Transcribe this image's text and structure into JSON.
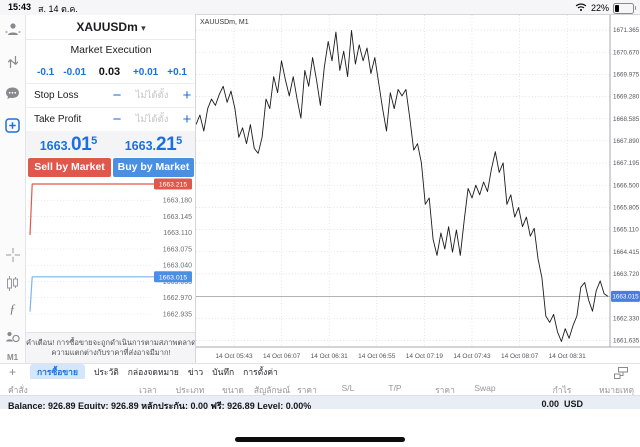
{
  "status_bar": {
    "time": "15:43",
    "date": "ส. 14 ต.ค.",
    "battery": "22%"
  },
  "sidebar": {
    "timeframe": "M1"
  },
  "icons": {
    "quotes": "person",
    "trade": "arrows-up-down",
    "chat": "speech-bubble",
    "new_order": "plus-square",
    "crosshair": "crosshair",
    "chart_type": "candles",
    "indicators": "ƒ",
    "objects": "shapes",
    "add": "+",
    "window_layout": "panes",
    "wifi": "wifi",
    "battery": "battery",
    "symbol_arrow": "▾"
  },
  "order_panel": {
    "symbol": "XAUUSDm",
    "mode": "Market Execution",
    "volume": {
      "dec_big": "-0.1",
      "dec_small": "-0.01",
      "value": "0.03",
      "inc_small": "+0.01",
      "inc_big": "+0.1"
    },
    "stop_loss_label": "Stop Loss",
    "take_profit_label": "Take Profit",
    "not_set": "ไม่ได้ตั้ง",
    "minus": "−",
    "plus": "+",
    "sell_price": {
      "prefix": "1663.",
      "big": "01",
      "sup": "5"
    },
    "buy_price": {
      "prefix": "1663.",
      "big": "21",
      "sup": "5"
    },
    "sell_button": "Sell by Market",
    "buy_button": "Buy by Market",
    "warning_line1": "คำเตือน! การซื้อขายจะถูกดำเนินการตามสภาพตลาด",
    "warning_line2": "ความแตกต่างกับราคาที่ส่งอาจมีมาก!"
  },
  "mini_chart": {
    "labels": [
      "1663.180",
      "1663.145",
      "1663.110",
      "1663.075",
      "1663.040",
      "1663.005",
      "1662.970",
      "1662.935"
    ],
    "ask_badge": "1663.215",
    "bid_badge": "1663.015",
    "ask_color": "#e0574b",
    "bid_color": "#7fb3ea",
    "ask_points": [
      [
        0.0,
        1663.105
      ],
      [
        0.018,
        1663.215
      ],
      [
        1.0,
        1663.215
      ]
    ],
    "bid_points": [
      [
        0.0,
        1662.94
      ],
      [
        0.018,
        1663.015
      ],
      [
        1.0,
        1663.015
      ]
    ]
  },
  "chart_data": {
    "type": "line",
    "title": "XAUUSDm, M1",
    "x_ticks": [
      "14 Oct 05:43",
      "14 Oct 06:07",
      "14 Oct 06:31",
      "14 Oct 06:55",
      "14 Oct 07:19",
      "14 Oct 07:43",
      "14 Oct 08:07",
      "14 Oct 08:31"
    ],
    "y_ticks": [
      1671.365,
      1670.67,
      1669.975,
      1669.28,
      1668.585,
      1667.89,
      1667.195,
      1666.5,
      1665.805,
      1665.11,
      1664.415,
      1663.72,
      1662.33,
      1661.635
    ],
    "current_price": 1663.015,
    "current_price_label": "1663.015",
    "ylim": [
      1661.35,
      1671.75
    ],
    "grid": true,
    "legend": "none",
    "line_color": "#1c1c1e",
    "prices": [
      1668.4,
      1668.7,
      1668.2,
      1668.9,
      1669.2,
      1669.0,
      1669.35,
      1669.6,
      1669.1,
      1669.45,
      1668.9,
      1668.0,
      1668.3,
      1667.8,
      1668.4,
      1667.65,
      1667.5,
      1668.0,
      1669.2,
      1668.9,
      1669.9,
      1669.4,
      1670.4,
      1669.8,
      1669.3,
      1669.9,
      1669.2,
      1668.6,
      1670.1,
      1669.6,
      1670.5,
      1669.8,
      1669.0,
      1670.2,
      1671.0,
      1670.4,
      1671.3,
      1670.1,
      1670.7,
      1669.9,
      1671.35,
      1670.3,
      1670.9,
      1670.4,
      1670.8,
      1670.0,
      1670.5,
      1669.7,
      1668.9,
      1668.2,
      1669.4,
      1668.9,
      1669.5,
      1669.3,
      1669.5,
      1668.6,
      1667.6,
      1667.8,
      1667.2,
      1665.9,
      1666.1,
      1664.8,
      1664.3,
      1665.0,
      1664.5,
      1665.2,
      1664.4,
      1665.1,
      1664.3,
      1665.4,
      1666.4,
      1666.1,
      1666.5,
      1666.2,
      1666.6,
      1666.3,
      1667.0,
      1667.55,
      1666.9,
      1667.2,
      1665.9,
      1666.2,
      1665.5,
      1665.8,
      1665.2,
      1665.5,
      1664.9,
      1665.15,
      1664.2,
      1663.6,
      1662.4,
      1662.2,
      1662.45,
      1661.9,
      1661.6,
      1662.0,
      1661.7,
      1662.1,
      1662.4,
      1663.3,
      1663.45,
      1662.9,
      1662.55,
      1663.2,
      1663.5,
      1663.1,
      1663.015
    ]
  },
  "bottom_bar": {
    "tabs": [
      {
        "label": "การซื้อขาย",
        "selected": true
      },
      {
        "label": "ประวัติ",
        "selected": false
      },
      {
        "label": "กล่องจดหมาย",
        "selected": false
      },
      {
        "label": "ข่าว",
        "selected": false
      },
      {
        "label": "บันทึก",
        "selected": false
      },
      {
        "label": "การตั้งค่า",
        "selected": false
      }
    ]
  },
  "positions_table": {
    "headers": [
      "คำสั่ง",
      "เวลา",
      "ประเภท",
      "ขนาด",
      "สัญลักษณ์",
      "ราคา",
      "S/L",
      "T/P",
      "ราคา",
      "Swap",
      "กำไร",
      "หมายเหตุ"
    ]
  },
  "account_bar": {
    "summary": "Balance: 926.89 Equity: 926.89 หลักประกัน: 0.00 ฟรี: 926.89 Level: 0.00%",
    "profit": "0.00",
    "currency": "USD"
  },
  "colors": {
    "accent": "#1b6fe0",
    "sell": "#e0574b",
    "buy": "#4a90e2",
    "badge_bid": "#4a7de0",
    "chart_line": "#1c1c1e"
  }
}
